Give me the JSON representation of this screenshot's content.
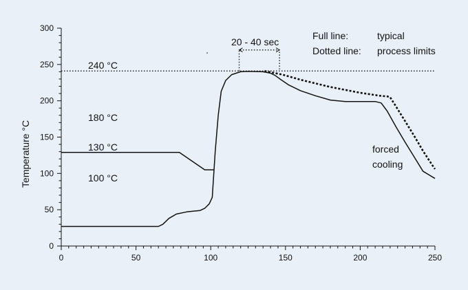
{
  "chart_data": {
    "type": "line",
    "ylabel": "Temperature °C",
    "xlabel": "",
    "xlim": [
      0,
      250
    ],
    "ylim": [
      0,
      300
    ],
    "x_ticks": [
      0,
      50,
      100,
      150,
      200,
      250
    ],
    "y_ticks": [
      0,
      50,
      100,
      150,
      200,
      250,
      300
    ],
    "background_color": "#e9f0f7",
    "line_color": "#111111",
    "grid": false,
    "series": [
      {
        "style": "solid",
        "points": [
          [
            0,
            27
          ],
          [
            30,
            27
          ],
          [
            65,
            27
          ],
          [
            68,
            30
          ],
          [
            72,
            38
          ],
          [
            77,
            44
          ],
          [
            84,
            47
          ],
          [
            93,
            49
          ],
          [
            96,
            52
          ],
          [
            99,
            58
          ],
          [
            101,
            67
          ],
          [
            103,
            130
          ],
          [
            105,
            180
          ],
          [
            107,
            213
          ],
          [
            110,
            228
          ],
          [
            114,
            236
          ],
          [
            120,
            240
          ],
          [
            125,
            240.5
          ],
          [
            135,
            240
          ],
          [
            140,
            238
          ],
          [
            143,
            235
          ],
          [
            147,
            229
          ],
          [
            152,
            222
          ],
          [
            160,
            214
          ],
          [
            170,
            207
          ],
          [
            180,
            201
          ],
          [
            190,
            199
          ],
          [
            210,
            199
          ],
          [
            214,
            197
          ],
          [
            218,
            186
          ],
          [
            224,
            164
          ],
          [
            230,
            143
          ],
          [
            236,
            123
          ],
          [
            242,
            103
          ],
          [
            250,
            93
          ]
        ]
      },
      {
        "style": "solid",
        "points": [
          [
            0,
            129
          ],
          [
            79,
            129
          ],
          [
            96,
            105
          ],
          [
            102,
            105
          ]
        ]
      },
      {
        "style": "dotted",
        "points": [
          [
            0,
            241
          ],
          [
            250,
            241
          ]
        ]
      },
      {
        "style": "dotted",
        "points": [
          [
            136,
            241
          ],
          [
            148,
            236
          ],
          [
            160,
            229
          ],
          [
            170,
            224
          ],
          [
            180,
            219
          ],
          [
            190,
            215
          ],
          [
            200,
            211
          ],
          [
            213,
            207
          ],
          [
            218,
            206
          ],
          [
            220,
            205
          ],
          [
            224,
            192
          ],
          [
            230,
            172
          ],
          [
            236,
            152
          ],
          [
            242,
            131
          ],
          [
            248,
            112
          ],
          [
            250,
            106
          ]
        ]
      },
      {
        "style": "dotted",
        "points": [
          [
            119,
            241
          ],
          [
            119,
            270
          ],
          [
            146,
            270
          ],
          [
            146,
            241
          ]
        ]
      }
    ],
    "annotations": [
      {
        "id": "duration",
        "text": "20 - 40 sec"
      },
      {
        "id": "full_line_label",
        "text": "Full line:"
      },
      {
        "id": "full_line_value",
        "text": "typical"
      },
      {
        "id": "dotted_line_label",
        "text": "Dotted line:"
      },
      {
        "id": "dotted_line_value",
        "text": "process limits"
      },
      {
        "id": "t240",
        "text": "240 °C"
      },
      {
        "id": "t180",
        "text": "180 °C"
      },
      {
        "id": "t130",
        "text": "130 °C"
      },
      {
        "id": "t100",
        "text": "100 °C"
      },
      {
        "id": "forced",
        "text": "forced"
      },
      {
        "id": "cooling",
        "text": "cooling"
      }
    ]
  }
}
